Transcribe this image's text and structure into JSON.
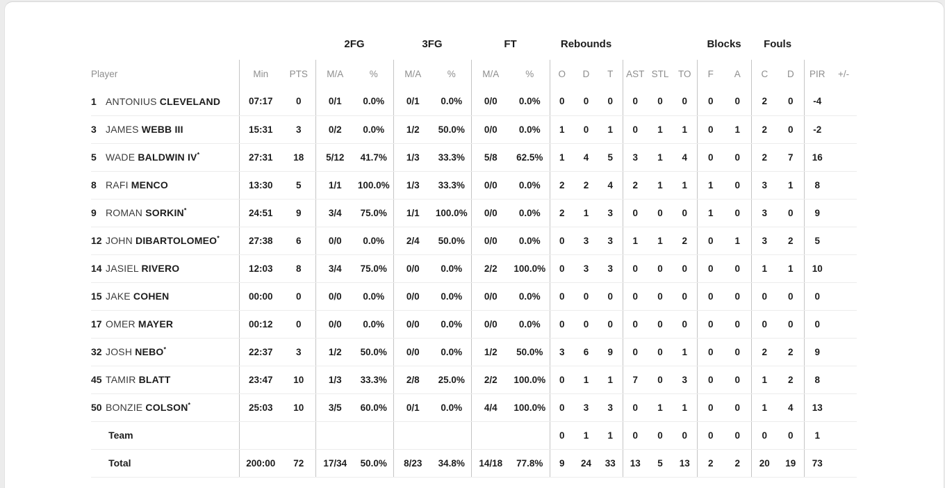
{
  "colors": {
    "page_bg": "#ececec",
    "card_bg": "#ffffff",
    "card_border": "#d6d6d6",
    "ink": "#1c1c1c",
    "muted": "#8e8e8e",
    "first_name": "#3b3b3b",
    "vline": "#c4c4c4",
    "hline": "#ececec"
  },
  "table": {
    "groups": {
      "fg2": "2FG",
      "fg3": "3FG",
      "ft": "FT",
      "rebounds": "Rebounds",
      "blocks": "Blocks",
      "fouls": "Fouls"
    },
    "headers": {
      "player": "Player",
      "min": "Min",
      "pts": "PTS",
      "ma": "M/A",
      "pct": "%",
      "o": "O",
      "dreb": "D",
      "t": "T",
      "ast": "AST",
      "stl": "STL",
      "to": "TO",
      "f": "F",
      "a": "A",
      "c": "C",
      "dfoul": "D",
      "pir": "PIR",
      "plusminus": "+/-"
    },
    "starter_mark": "*",
    "rows": [
      {
        "num": "1",
        "first": "ANTONIUS",
        "last": "CLEVELAND",
        "star": "",
        "min": "07:17",
        "pts": "0",
        "fg2ma": "0/1",
        "fg2pct": "0.0%",
        "fg3ma": "0/1",
        "fg3pct": "0.0%",
        "ftma": "0/0",
        "ftpct": "0.0%",
        "ro": "0",
        "rd": "0",
        "rt": "0",
        "ast": "0",
        "stl": "0",
        "to": "0",
        "bf": "0",
        "ba": "0",
        "fc": "2",
        "fd": "0",
        "pir": "-4",
        "pm": ""
      },
      {
        "num": "3",
        "first": "JAMES",
        "last": "WEBB III",
        "star": "",
        "min": "15:31",
        "pts": "3",
        "fg2ma": "0/2",
        "fg2pct": "0.0%",
        "fg3ma": "1/2",
        "fg3pct": "50.0%",
        "ftma": "0/0",
        "ftpct": "0.0%",
        "ro": "1",
        "rd": "0",
        "rt": "1",
        "ast": "0",
        "stl": "1",
        "to": "1",
        "bf": "0",
        "ba": "1",
        "fc": "2",
        "fd": "0",
        "pir": "-2",
        "pm": ""
      },
      {
        "num": "5",
        "first": "WADE",
        "last": "BALDWIN IV",
        "star": "*",
        "min": "27:31",
        "pts": "18",
        "fg2ma": "5/12",
        "fg2pct": "41.7%",
        "fg3ma": "1/3",
        "fg3pct": "33.3%",
        "ftma": "5/8",
        "ftpct": "62.5%",
        "ro": "1",
        "rd": "4",
        "rt": "5",
        "ast": "3",
        "stl": "1",
        "to": "4",
        "bf": "0",
        "ba": "0",
        "fc": "2",
        "fd": "7",
        "pir": "16",
        "pm": ""
      },
      {
        "num": "8",
        "first": "RAFI",
        "last": "MENCO",
        "star": "",
        "min": "13:30",
        "pts": "5",
        "fg2ma": "1/1",
        "fg2pct": "100.0%",
        "fg3ma": "1/3",
        "fg3pct": "33.3%",
        "ftma": "0/0",
        "ftpct": "0.0%",
        "ro": "2",
        "rd": "2",
        "rt": "4",
        "ast": "2",
        "stl": "1",
        "to": "1",
        "bf": "1",
        "ba": "0",
        "fc": "3",
        "fd": "1",
        "pir": "8",
        "pm": ""
      },
      {
        "num": "9",
        "first": "ROMAN",
        "last": "SORKIN",
        "star": "*",
        "min": "24:51",
        "pts": "9",
        "fg2ma": "3/4",
        "fg2pct": "75.0%",
        "fg3ma": "1/1",
        "fg3pct": "100.0%",
        "ftma": "0/0",
        "ftpct": "0.0%",
        "ro": "2",
        "rd": "1",
        "rt": "3",
        "ast": "0",
        "stl": "0",
        "to": "0",
        "bf": "1",
        "ba": "0",
        "fc": "3",
        "fd": "0",
        "pir": "9",
        "pm": ""
      },
      {
        "num": "12",
        "first": "JOHN",
        "last": "DIBARTOLOMEO",
        "star": "*",
        "min": "27:38",
        "pts": "6",
        "fg2ma": "0/0",
        "fg2pct": "0.0%",
        "fg3ma": "2/4",
        "fg3pct": "50.0%",
        "ftma": "0/0",
        "ftpct": "0.0%",
        "ro": "0",
        "rd": "3",
        "rt": "3",
        "ast": "1",
        "stl": "1",
        "to": "2",
        "bf": "0",
        "ba": "1",
        "fc": "3",
        "fd": "2",
        "pir": "5",
        "pm": ""
      },
      {
        "num": "14",
        "first": "JASIEL",
        "last": "RIVERO",
        "star": "",
        "min": "12:03",
        "pts": "8",
        "fg2ma": "3/4",
        "fg2pct": "75.0%",
        "fg3ma": "0/0",
        "fg3pct": "0.0%",
        "ftma": "2/2",
        "ftpct": "100.0%",
        "ro": "0",
        "rd": "3",
        "rt": "3",
        "ast": "0",
        "stl": "0",
        "to": "0",
        "bf": "0",
        "ba": "0",
        "fc": "1",
        "fd": "1",
        "pir": "10",
        "pm": ""
      },
      {
        "num": "15",
        "first": "JAKE",
        "last": "COHEN",
        "star": "",
        "min": "00:00",
        "pts": "0",
        "fg2ma": "0/0",
        "fg2pct": "0.0%",
        "fg3ma": "0/0",
        "fg3pct": "0.0%",
        "ftma": "0/0",
        "ftpct": "0.0%",
        "ro": "0",
        "rd": "0",
        "rt": "0",
        "ast": "0",
        "stl": "0",
        "to": "0",
        "bf": "0",
        "ba": "0",
        "fc": "0",
        "fd": "0",
        "pir": "0",
        "pm": ""
      },
      {
        "num": "17",
        "first": "OMER",
        "last": "MAYER",
        "star": "",
        "min": "00:12",
        "pts": "0",
        "fg2ma": "0/0",
        "fg2pct": "0.0%",
        "fg3ma": "0/0",
        "fg3pct": "0.0%",
        "ftma": "0/0",
        "ftpct": "0.0%",
        "ro": "0",
        "rd": "0",
        "rt": "0",
        "ast": "0",
        "stl": "0",
        "to": "0",
        "bf": "0",
        "ba": "0",
        "fc": "0",
        "fd": "0",
        "pir": "0",
        "pm": ""
      },
      {
        "num": "32",
        "first": "JOSH",
        "last": "NEBO",
        "star": "*",
        "min": "22:37",
        "pts": "3",
        "fg2ma": "1/2",
        "fg2pct": "50.0%",
        "fg3ma": "0/0",
        "fg3pct": "0.0%",
        "ftma": "1/2",
        "ftpct": "50.0%",
        "ro": "3",
        "rd": "6",
        "rt": "9",
        "ast": "0",
        "stl": "0",
        "to": "1",
        "bf": "0",
        "ba": "0",
        "fc": "2",
        "fd": "2",
        "pir": "9",
        "pm": ""
      },
      {
        "num": "45",
        "first": "TAMIR",
        "last": "BLATT",
        "star": "",
        "min": "23:47",
        "pts": "10",
        "fg2ma": "1/3",
        "fg2pct": "33.3%",
        "fg3ma": "2/8",
        "fg3pct": "25.0%",
        "ftma": "2/2",
        "ftpct": "100.0%",
        "ro": "0",
        "rd": "1",
        "rt": "1",
        "ast": "7",
        "stl": "0",
        "to": "3",
        "bf": "0",
        "ba": "0",
        "fc": "1",
        "fd": "2",
        "pir": "8",
        "pm": ""
      },
      {
        "num": "50",
        "first": "BONZIE",
        "last": "COLSON",
        "star": "*",
        "min": "25:03",
        "pts": "10",
        "fg2ma": "3/5",
        "fg2pct": "60.0%",
        "fg3ma": "0/1",
        "fg3pct": "0.0%",
        "ftma": "4/4",
        "ftpct": "100.0%",
        "ro": "0",
        "rd": "3",
        "rt": "3",
        "ast": "0",
        "stl": "1",
        "to": "1",
        "bf": "0",
        "ba": "0",
        "fc": "1",
        "fd": "4",
        "pir": "13",
        "pm": ""
      },
      {
        "label": "Team",
        "min": "",
        "pts": "",
        "fg2ma": "",
        "fg2pct": "",
        "fg3ma": "",
        "fg3pct": "",
        "ftma": "",
        "ftpct": "",
        "ro": "0",
        "rd": "1",
        "rt": "1",
        "ast": "0",
        "stl": "0",
        "to": "0",
        "bf": "0",
        "ba": "0",
        "fc": "0",
        "fd": "0",
        "pir": "1",
        "pm": ""
      },
      {
        "label": "Total",
        "min": "200:00",
        "pts": "72",
        "fg2ma": "17/34",
        "fg2pct": "50.0%",
        "fg3ma": "8/23",
        "fg3pct": "34.8%",
        "ftma": "14/18",
        "ftpct": "77.8%",
        "ro": "9",
        "rd": "24",
        "rt": "33",
        "ast": "13",
        "stl": "5",
        "to": "13",
        "bf": "2",
        "ba": "2",
        "fc": "20",
        "fd": "19",
        "pir": "73",
        "pm": ""
      }
    ]
  }
}
